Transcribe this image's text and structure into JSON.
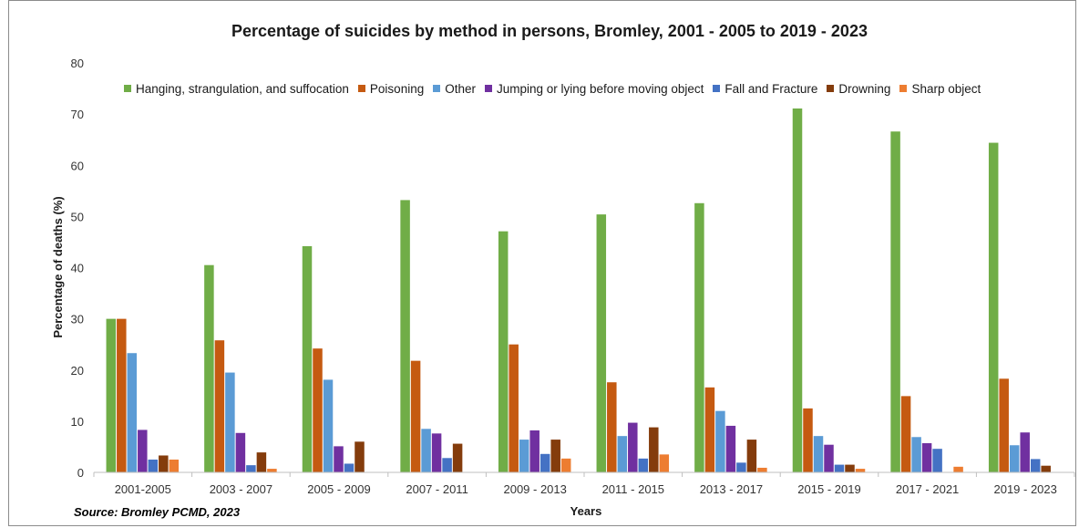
{
  "chart_data": {
    "type": "bar",
    "title": "Percentage of suicides by method in persons, Bromley, 2001 - 2005 to 2019 - 2023",
    "xlabel": "Years",
    "ylabel": "Percentage of deaths (%)",
    "ylim": [
      0,
      80
    ],
    "yticks": [
      0,
      10,
      20,
      30,
      40,
      50,
      60,
      70,
      80
    ],
    "grid": false,
    "legend_position": "top",
    "source": "Source: Bromley PCMD, 2023",
    "categories": [
      "2001-2005",
      "2003 - 2007",
      "2005 - 2009",
      "2007 - 2011",
      "2009 - 2013",
      "2011 - 2015",
      "2013 - 2017",
      "2015 - 2019",
      "2017 - 2021",
      "2019 - 2023"
    ],
    "series": [
      {
        "name": "Hanging, strangulation, and suffocation",
        "color": "#70ad47",
        "values": [
          30,
          40.5,
          44.2,
          53.2,
          47.1,
          50.4,
          52.6,
          71.1,
          66.6,
          64.4
        ]
      },
      {
        "name": "Poisoning",
        "color": "#c55a11",
        "values": [
          30,
          25.8,
          24.2,
          21.8,
          25,
          17.6,
          16.6,
          12.5,
          14.9,
          18.3
        ]
      },
      {
        "name": "Other",
        "color": "#5b9bd5",
        "values": [
          23.3,
          19.5,
          18.1,
          8.5,
          6.4,
          7.1,
          12,
          7.1,
          6.9,
          5.3
        ]
      },
      {
        "name": "Jumping or lying before moving object",
        "color": "#7030a0",
        "values": [
          8.3,
          7.7,
          5.1,
          7.6,
          8.2,
          9.7,
          9.1,
          5.4,
          5.7,
          7.8
        ]
      },
      {
        "name": "Fall and Fracture",
        "color": "#4472c4",
        "values": [
          2.5,
          1.4,
          1.7,
          2.8,
          3.6,
          2.7,
          1.9,
          1.5,
          4.6,
          2.6
        ]
      },
      {
        "name": "Drowning",
        "color": "#843c0c",
        "values": [
          3.3,
          3.9,
          6,
          5.6,
          6.4,
          8.8,
          6.4,
          1.5,
          0,
          1.3
        ]
      },
      {
        "name": "Sharp object",
        "color": "#ed7d31",
        "values": [
          2.5,
          0.7,
          0,
          0,
          2.7,
          3.5,
          0.9,
          0.7,
          1.1,
          0
        ]
      }
    ]
  }
}
